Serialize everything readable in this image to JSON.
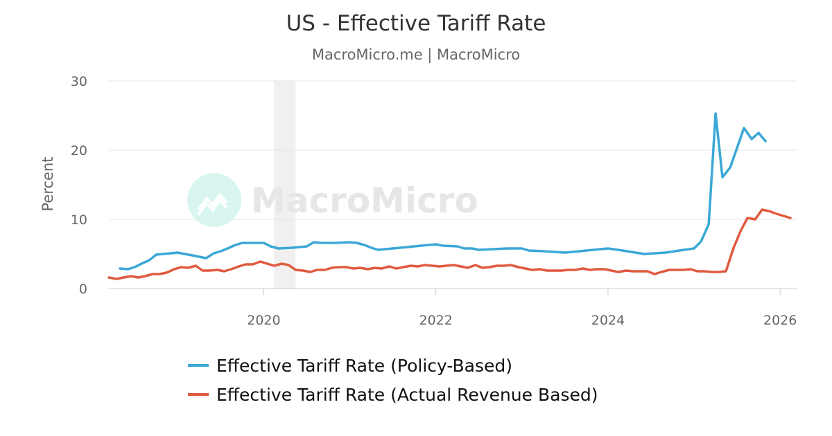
{
  "chart_data": {
    "type": "line",
    "title": "US - Effective Tariff Rate",
    "subtitle": "MacroMicro.me | MacroMicro",
    "ylabel": "Percent",
    "xlabel": "",
    "ylim": [
      0,
      30
    ],
    "yticks": [
      0,
      10,
      20,
      30
    ],
    "xlim": [
      2018.2,
      2026.2
    ],
    "xticks": [
      2020,
      2022,
      2024,
      2026
    ],
    "grid": true,
    "legend_position": "bottom",
    "watermark": "MacroMicro",
    "shaded_periods": [
      {
        "from": 2020.12,
        "to": 2020.37
      }
    ],
    "series": [
      {
        "name": "Effective Tariff Rate (Policy-Based)",
        "color": "#3ba8d6",
        "points": [
          [
            2018.33,
            2.9
          ],
          [
            2018.42,
            2.8
          ],
          [
            2018.5,
            3.1
          ],
          [
            2018.58,
            3.6
          ],
          [
            2018.67,
            4.1
          ],
          [
            2018.75,
            4.9
          ],
          [
            2018.83,
            5.0
          ],
          [
            2018.92,
            5.1
          ],
          [
            2019.0,
            5.2
          ],
          [
            2019.08,
            5.0
          ],
          [
            2019.17,
            4.8
          ],
          [
            2019.25,
            4.6
          ],
          [
            2019.33,
            4.4
          ],
          [
            2019.42,
            5.1
          ],
          [
            2019.5,
            5.4
          ],
          [
            2019.58,
            5.8
          ],
          [
            2019.67,
            6.3
          ],
          [
            2019.75,
            6.6
          ],
          [
            2019.83,
            6.6
          ],
          [
            2019.92,
            6.6
          ],
          [
            2020.0,
            6.6
          ],
          [
            2020.08,
            6.1
          ],
          [
            2020.17,
            5.8
          ],
          [
            2020.33,
            5.9
          ],
          [
            2020.5,
            6.1
          ],
          [
            2020.58,
            6.7
          ],
          [
            2020.67,
            6.6
          ],
          [
            2020.83,
            6.6
          ],
          [
            2021.0,
            6.7
          ],
          [
            2021.08,
            6.6
          ],
          [
            2021.17,
            6.3
          ],
          [
            2021.25,
            5.9
          ],
          [
            2021.33,
            5.6
          ],
          [
            2021.5,
            5.8
          ],
          [
            2021.67,
            6.0
          ],
          [
            2021.83,
            6.2
          ],
          [
            2022.0,
            6.4
          ],
          [
            2022.08,
            6.2
          ],
          [
            2022.25,
            6.1
          ],
          [
            2022.33,
            5.8
          ],
          [
            2022.42,
            5.8
          ],
          [
            2022.5,
            5.6
          ],
          [
            2022.67,
            5.7
          ],
          [
            2022.83,
            5.8
          ],
          [
            2023.0,
            5.8
          ],
          [
            2023.08,
            5.5
          ],
          [
            2023.25,
            5.4
          ],
          [
            2023.5,
            5.2
          ],
          [
            2023.67,
            5.4
          ],
          [
            2023.83,
            5.6
          ],
          [
            2024.0,
            5.8
          ],
          [
            2024.17,
            5.5
          ],
          [
            2024.42,
            5.0
          ],
          [
            2024.67,
            5.2
          ],
          [
            2024.83,
            5.5
          ],
          [
            2025.0,
            5.8
          ],
          [
            2025.08,
            6.8
          ],
          [
            2025.17,
            9.3
          ],
          [
            2025.25,
            25.3
          ],
          [
            2025.33,
            16.1
          ],
          [
            2025.42,
            17.5
          ],
          [
            2025.58,
            23.2
          ],
          [
            2025.67,
            21.6
          ],
          [
            2025.75,
            22.5
          ],
          [
            2025.83,
            21.3
          ]
        ]
      },
      {
        "name": "Effective Tariff Rate (Actual Revenue Based)",
        "color": "#e05a40",
        "points": [
          [
            2018.2,
            1.6
          ],
          [
            2018.29,
            1.4
          ],
          [
            2018.37,
            1.6
          ],
          [
            2018.46,
            1.8
          ],
          [
            2018.54,
            1.6
          ],
          [
            2018.62,
            1.8
          ],
          [
            2018.71,
            2.1
          ],
          [
            2018.79,
            2.1
          ],
          [
            2018.87,
            2.3
          ],
          [
            2018.96,
            2.8
          ],
          [
            2019.04,
            3.1
          ],
          [
            2019.12,
            3.0
          ],
          [
            2019.21,
            3.3
          ],
          [
            2019.29,
            2.6
          ],
          [
            2019.37,
            2.6
          ],
          [
            2019.46,
            2.7
          ],
          [
            2019.54,
            2.5
          ],
          [
            2019.62,
            2.8
          ],
          [
            2019.71,
            3.2
          ],
          [
            2019.79,
            3.5
          ],
          [
            2019.87,
            3.5
          ],
          [
            2019.96,
            3.9
          ],
          [
            2020.04,
            3.6
          ],
          [
            2020.12,
            3.3
          ],
          [
            2020.21,
            3.6
          ],
          [
            2020.29,
            3.4
          ],
          [
            2020.37,
            2.7
          ],
          [
            2020.46,
            2.6
          ],
          [
            2020.54,
            2.4
          ],
          [
            2020.62,
            2.7
          ],
          [
            2020.71,
            2.7
          ],
          [
            2020.79,
            3.0
          ],
          [
            2020.87,
            3.1
          ],
          [
            2020.96,
            3.1
          ],
          [
            2021.04,
            2.9
          ],
          [
            2021.12,
            3.0
          ],
          [
            2021.21,
            2.8
          ],
          [
            2021.29,
            3.0
          ],
          [
            2021.37,
            2.9
          ],
          [
            2021.46,
            3.2
          ],
          [
            2021.54,
            2.9
          ],
          [
            2021.62,
            3.1
          ],
          [
            2021.71,
            3.3
          ],
          [
            2021.79,
            3.2
          ],
          [
            2021.87,
            3.4
          ],
          [
            2021.96,
            3.3
          ],
          [
            2022.04,
            3.2
          ],
          [
            2022.12,
            3.3
          ],
          [
            2022.21,
            3.4
          ],
          [
            2022.29,
            3.2
          ],
          [
            2022.37,
            3.0
          ],
          [
            2022.46,
            3.4
          ],
          [
            2022.54,
            3.0
          ],
          [
            2022.62,
            3.1
          ],
          [
            2022.71,
            3.3
          ],
          [
            2022.79,
            3.3
          ],
          [
            2022.87,
            3.4
          ],
          [
            2022.96,
            3.1
          ],
          [
            2023.04,
            2.9
          ],
          [
            2023.12,
            2.7
          ],
          [
            2023.21,
            2.8
          ],
          [
            2023.29,
            2.6
          ],
          [
            2023.37,
            2.6
          ],
          [
            2023.46,
            2.6
          ],
          [
            2023.54,
            2.7
          ],
          [
            2023.62,
            2.7
          ],
          [
            2023.71,
            2.9
          ],
          [
            2023.79,
            2.7
          ],
          [
            2023.87,
            2.8
          ],
          [
            2023.96,
            2.8
          ],
          [
            2024.04,
            2.6
          ],
          [
            2024.12,
            2.4
          ],
          [
            2024.21,
            2.6
          ],
          [
            2024.29,
            2.5
          ],
          [
            2024.37,
            2.5
          ],
          [
            2024.46,
            2.5
          ],
          [
            2024.54,
            2.1
          ],
          [
            2024.62,
            2.4
          ],
          [
            2024.71,
            2.7
          ],
          [
            2024.79,
            2.7
          ],
          [
            2024.87,
            2.7
          ],
          [
            2024.96,
            2.8
          ],
          [
            2025.04,
            2.5
          ],
          [
            2025.12,
            2.5
          ],
          [
            2025.21,
            2.4
          ],
          [
            2025.29,
            2.4
          ],
          [
            2025.37,
            2.5
          ],
          [
            2025.46,
            5.9
          ],
          [
            2025.54,
            8.3
          ],
          [
            2025.62,
            10.2
          ],
          [
            2025.71,
            10.0
          ],
          [
            2025.79,
            11.4
          ],
          [
            2025.87,
            11.2
          ],
          [
            2025.96,
            10.8
          ],
          [
            2026.04,
            10.5
          ],
          [
            2026.12,
            10.2
          ]
        ]
      }
    ]
  }
}
